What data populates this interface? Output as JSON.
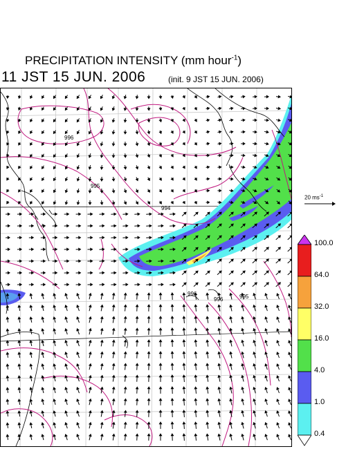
{
  "header": {
    "title": "PRECIPITATION INTENSITY (mm hour",
    "title_exp": "-1",
    "title_close": ")",
    "datetime": "11 JST 15 JUN. 2006",
    "init": "(init. 9 JST 15 JUN. 2006)"
  },
  "wind_scale": {
    "label": "20 ms",
    "label_exp": "-1"
  },
  "colorbar": {
    "labels": [
      "100.0",
      "64.0",
      "32.0",
      "16.0",
      "4.0",
      "1.0",
      "0.4"
    ],
    "colors": [
      "#cc33ee",
      "#e81e1e",
      "#f6a23c",
      "#ffff66",
      "#52e04a",
      "#5a5cf0",
      "#5cf0f0",
      "#ffffff"
    ]
  },
  "map": {
    "contour_labels": [
      "996",
      "995",
      "994",
      "995",
      "996",
      "996"
    ]
  }
}
